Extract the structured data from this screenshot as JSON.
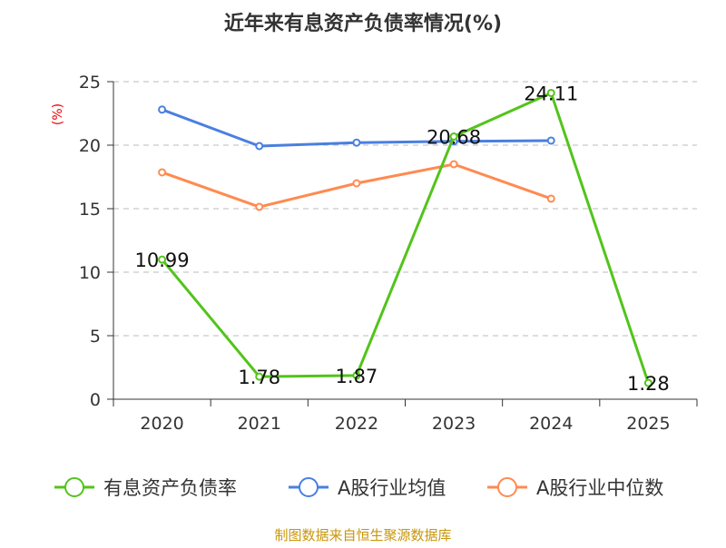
{
  "chart_data": {
    "type": "line",
    "title": "近年来有息资产负债率情况(%)",
    "ylabel": "(%)",
    "ylim": [
      0,
      25
    ],
    "yticks": [
      0,
      5,
      10,
      15,
      20,
      25
    ],
    "categories": [
      "2020",
      "2021",
      "2022",
      "2023",
      "2024",
      "2025"
    ],
    "series": [
      {
        "name": "有息资产负债率",
        "color": "#52c41a",
        "values": [
          10.99,
          1.78,
          1.87,
          20.68,
          24.11,
          1.28
        ],
        "labels": [
          "10.99",
          "1.78",
          "1.87",
          "20.68",
          "24.11",
          "1.28"
        ]
      },
      {
        "name": "A股行业均值",
        "color": "#4a7fe0",
        "values": [
          22.8,
          19.93,
          20.2,
          20.3,
          20.36,
          null
        ]
      },
      {
        "name": "A股行业中位数",
        "color": "#ff8a50",
        "values": [
          17.86,
          15.14,
          17.0,
          18.5,
          15.79,
          null
        ]
      }
    ],
    "grid": true,
    "legend_position": "bottom",
    "source": "制图数据来自恒生聚源数据库"
  }
}
